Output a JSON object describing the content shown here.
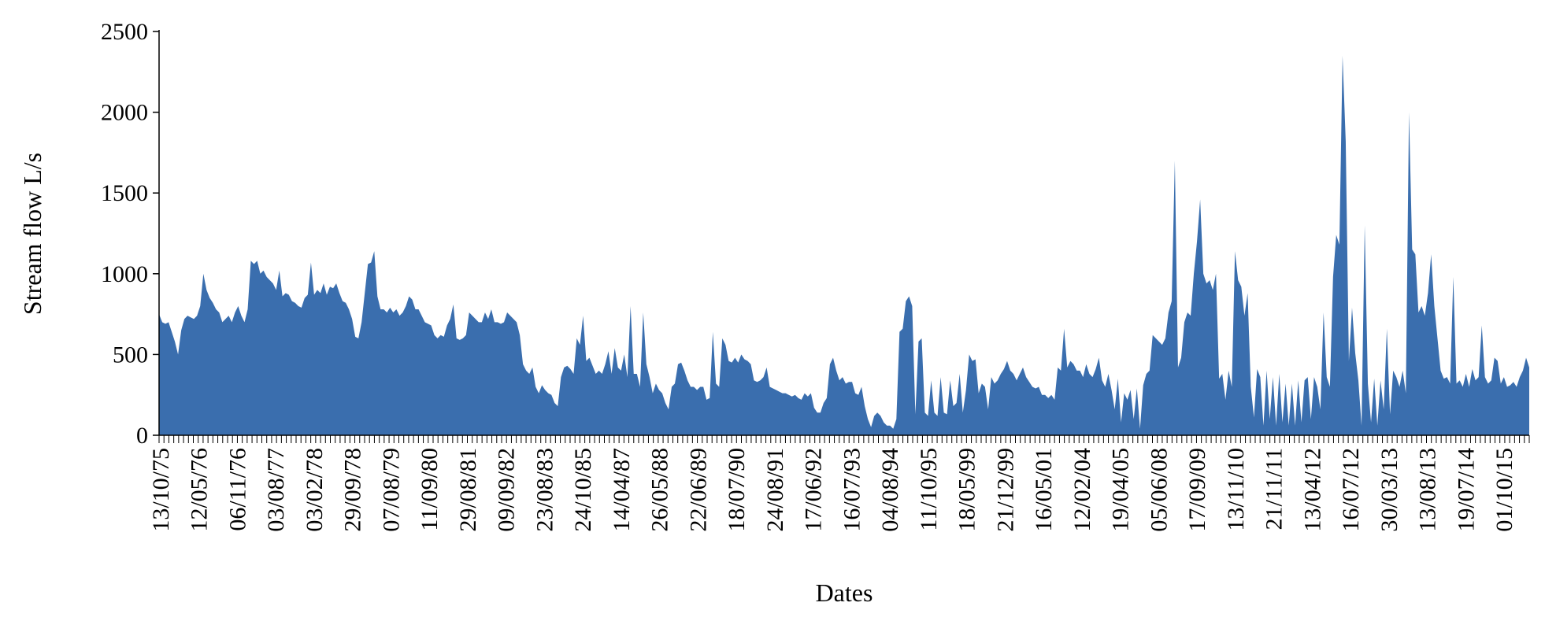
{
  "chart_data": {
    "type": "area",
    "title": "",
    "xlabel": "Dates",
    "ylabel": "Stream flow L/s",
    "ylim": [
      0,
      2500
    ],
    "yticks": [
      0,
      500,
      1000,
      1500,
      2000,
      2500
    ],
    "grid": false,
    "legend": "none",
    "color": "#3A6EAE",
    "x_tick_labels": [
      "13/10/75",
      "12/05/76",
      "06/11/76",
      "03/08/77",
      "03/02/78",
      "29/09/78",
      "07/08/79",
      "11/09/80",
      "29/08/81",
      "09/09/82",
      "23/08/83",
      "24/10/85",
      "14/04/87",
      "26/05/88",
      "22/06/89",
      "18/07/90",
      "24/08/91",
      "17/06/92",
      "16/07/93",
      "04/08/94",
      "11/10/95",
      "18/05/99",
      "21/12/99",
      "16/05/01",
      "12/02/04",
      "19/04/05",
      "05/06/08",
      "17/09/09",
      "13/11/10",
      "21/11/11",
      "13/04/12",
      "16/07/12",
      "30/03/13",
      "13/08/13",
      "19/07/14",
      "01/10/15"
    ],
    "series": [
      {
        "values": [
          750,
          700,
          690,
          700,
          640,
          580,
          500,
          650,
          720,
          740,
          730,
          720,
          740,
          800,
          1000,
          900,
          850,
          820,
          780,
          760,
          700,
          720,
          740,
          700,
          760,
          800,
          740,
          700,
          780,
          1080,
          1060,
          1080,
          1000,
          1020,
          980,
          960,
          940,
          900,
          1020,
          860,
          880,
          870,
          830,
          820,
          800,
          790,
          850,
          870,
          1070,
          870,
          900,
          880,
          940,
          870,
          920,
          910,
          940,
          880,
          830,
          820,
          780,
          720,
          610,
          600,
          700,
          880,
          1060,
          1070,
          1140,
          860,
          780,
          780,
          760,
          790,
          760,
          780,
          740,
          760,
          800,
          860,
          840,
          780,
          780,
          740,
          700,
          690,
          680,
          620,
          600,
          620,
          610,
          680,
          720,
          810,
          600,
          590,
          600,
          620,
          760,
          740,
          720,
          700,
          700,
          760,
          720,
          780,
          700,
          700,
          690,
          700,
          760,
          740,
          720,
          700,
          620,
          440,
          400,
          380,
          420,
          300,
          260,
          310,
          280,
          260,
          250,
          200,
          180,
          360,
          420,
          430,
          410,
          380,
          600,
          560,
          740,
          460,
          480,
          430,
          380,
          400,
          380,
          440,
          520,
          380,
          540,
          420,
          400,
          500,
          360,
          800,
          380,
          380,
          300,
          760,
          440,
          360,
          260,
          320,
          280,
          260,
          200,
          160,
          300,
          320,
          440,
          450,
          400,
          340,
          300,
          300,
          280,
          300,
          300,
          220,
          230,
          640,
          320,
          300,
          600,
          560,
          460,
          450,
          480,
          450,
          500,
          470,
          460,
          440,
          340,
          330,
          340,
          360,
          420,
          300,
          290,
          280,
          270,
          260,
          260,
          250,
          240,
          250,
          230,
          220,
          260,
          240,
          260,
          170,
          140,
          140,
          200,
          230,
          440,
          480,
          400,
          340,
          360,
          320,
          330,
          330,
          260,
          250,
          300,
          180,
          100,
          50,
          120,
          140,
          120,
          80,
          60,
          60,
          40,
          100,
          640,
          660,
          830,
          860,
          800,
          130,
          580,
          600,
          140,
          120,
          340,
          140,
          120,
          360,
          140,
          130,
          340,
          180,
          200,
          380,
          140,
          280,
          500,
          460,
          470,
          260,
          320,
          300,
          160,
          360,
          320,
          340,
          380,
          410,
          460,
          400,
          380,
          340,
          380,
          420,
          360,
          330,
          300,
          290,
          300,
          250,
          250,
          230,
          250,
          220,
          420,
          400,
          660,
          420,
          460,
          440,
          400,
          400,
          360,
          440,
          380,
          360,
          410,
          480,
          340,
          300,
          380,
          280,
          160,
          350,
          80,
          260,
          220,
          280,
          100,
          290,
          40,
          310,
          380,
          400,
          620,
          600,
          580,
          560,
          600,
          760,
          830,
          1700,
          420,
          480,
          700,
          760,
          740,
          1000,
          1200,
          1460,
          1000,
          940,
          960,
          900,
          1000,
          350,
          380,
          220,
          400,
          300,
          1140,
          960,
          920,
          740,
          880,
          300,
          110,
          410,
          360,
          60,
          400,
          100,
          360,
          60,
          380,
          80,
          320,
          60,
          320,
          60,
          340,
          80,
          340,
          360,
          100,
          360,
          300,
          160,
          760,
          360,
          300,
          980,
          1240,
          1180,
          2350,
          1820,
          460,
          790,
          510,
          340,
          60,
          1300,
          320,
          80,
          350,
          60,
          340,
          160,
          660,
          130,
          400,
          360,
          300,
          400,
          260,
          2000,
          1150,
          1120,
          760,
          800,
          740,
          880,
          1120,
          800,
          600,
          400,
          350,
          360,
          320,
          980,
          320,
          340,
          300,
          380,
          300,
          410,
          340,
          360,
          680,
          360,
          320,
          340,
          480,
          460,
          320,
          360,
          300,
          310,
          330,
          300,
          360,
          400,
          480,
          420
        ]
      }
    ]
  }
}
